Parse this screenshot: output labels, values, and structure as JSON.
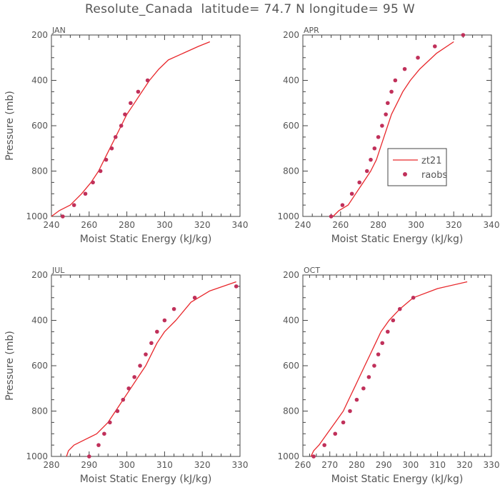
{
  "title": "Resolute_Canada  latitude= 74.7 N longitude= 95 W",
  "colors": {
    "model_line": "#e8272b",
    "raobs_marker": "#c0305a",
    "axis": "#444444",
    "text": "#555555"
  },
  "legend": {
    "line_label": "zt21",
    "marker_label": "raobs"
  },
  "chart_data": [
    {
      "type": "line",
      "panel": "JAN",
      "xlabel": "Moist Static Energy (kJ/kg)",
      "ylabel": "Pressure (mb)",
      "xlim": [
        240,
        340
      ],
      "ylim": [
        1000,
        200
      ],
      "y_inverted": true,
      "xticks": [
        240,
        260,
        280,
        300,
        320,
        340
      ],
      "yticks": [
        200,
        400,
        600,
        800,
        1000
      ],
      "series": [
        {
          "name": "zt21",
          "kind": "line",
          "x": [
            240,
            244,
            250,
            256,
            261,
            265,
            268,
            271,
            274,
            277,
            280,
            284,
            288,
            292,
            297,
            302,
            310,
            318,
            324
          ],
          "y": [
            1000,
            975,
            950,
            900,
            850,
            800,
            750,
            700,
            650,
            600,
            550,
            500,
            450,
            400,
            350,
            310,
            280,
            250,
            230
          ]
        },
        {
          "name": "raobs",
          "kind": "scatter",
          "x": [
            246,
            252,
            258,
            262,
            266,
            269,
            272,
            274,
            277,
            279,
            282,
            286,
            291
          ],
          "y": [
            1000,
            950,
            900,
            850,
            800,
            750,
            700,
            650,
            600,
            550,
            500,
            450,
            400
          ]
        }
      ]
    },
    {
      "type": "line",
      "panel": "APR",
      "xlabel": "Moist Static Energy (kJ/kg)",
      "ylabel": "",
      "xlim": [
        240,
        340
      ],
      "ylim": [
        1000,
        200
      ],
      "y_inverted": true,
      "xticks": [
        240,
        260,
        280,
        300,
        320,
        340
      ],
      "yticks": [
        200,
        400,
        600,
        800,
        1000
      ],
      "series": [
        {
          "name": "zt21",
          "kind": "line",
          "x": [
            256,
            259,
            264,
            268,
            272,
            276,
            279,
            281,
            283,
            285,
            287,
            290,
            293,
            297,
            302,
            311,
            320
          ],
          "y": [
            1000,
            975,
            950,
            900,
            850,
            800,
            750,
            700,
            650,
            600,
            550,
            500,
            450,
            400,
            350,
            280,
            230
          ]
        },
        {
          "name": "raobs",
          "kind": "scatter",
          "x": [
            255,
            261,
            266,
            270,
            274,
            276,
            278,
            280,
            282,
            284,
            285,
            287,
            289,
            294,
            301,
            310,
            325
          ],
          "y": [
            1000,
            950,
            900,
            850,
            800,
            750,
            700,
            650,
            600,
            550,
            500,
            450,
            400,
            350,
            300,
            250,
            200
          ]
        }
      ]
    },
    {
      "type": "line",
      "panel": "JUL",
      "xlabel": "Moist Static Energy (kJ/kg)",
      "ylabel": "Pressure (mb)",
      "xlim": [
        280,
        330
      ],
      "ylim": [
        1000,
        200
      ],
      "y_inverted": true,
      "xticks": [
        280,
        290,
        300,
        310,
        320,
        330
      ],
      "yticks": [
        200,
        400,
        600,
        800,
        1000
      ],
      "series": [
        {
          "name": "zt21",
          "kind": "line",
          "x": [
            284,
            284.5,
            286,
            289,
            292,
            295,
            297,
            299,
            301,
            303,
            305,
            306.5,
            308,
            310,
            313,
            317,
            322,
            329
          ],
          "y": [
            1000,
            975,
            950,
            925,
            900,
            850,
            800,
            750,
            700,
            650,
            600,
            550,
            500,
            450,
            400,
            320,
            270,
            230
          ]
        },
        {
          "name": "raobs",
          "kind": "scatter",
          "x": [
            290,
            292.5,
            294,
            295.5,
            297.5,
            299,
            300.5,
            302,
            303.5,
            305,
            306.5,
            308,
            310,
            312.5,
            318,
            329
          ],
          "y": [
            1000,
            950,
            900,
            850,
            800,
            750,
            700,
            650,
            600,
            550,
            500,
            450,
            400,
            350,
            300,
            250
          ]
        }
      ]
    },
    {
      "type": "line",
      "panel": "OCT",
      "xlabel": "Moist Static Energy (kJ/kg)",
      "ylabel": "",
      "xlim": [
        260,
        330
      ],
      "ylim": [
        1000,
        200
      ],
      "y_inverted": true,
      "xticks": [
        260,
        270,
        280,
        290,
        300,
        310,
        320,
        330
      ],
      "yticks": [
        200,
        400,
        600,
        800,
        1000
      ],
      "series": [
        {
          "name": "zt21",
          "kind": "line",
          "x": [
            263,
            264,
            266,
            269,
            272,
            275,
            277,
            279,
            281,
            283,
            285,
            287,
            289,
            292,
            296,
            301,
            310,
            321
          ],
          "y": [
            1000,
            975,
            950,
            900,
            850,
            800,
            750,
            700,
            650,
            600,
            550,
            500,
            450,
            400,
            350,
            300,
            260,
            230
          ]
        },
        {
          "name": "raobs",
          "kind": "scatter",
          "x": [
            264,
            268,
            272,
            275,
            277.5,
            280,
            282.5,
            284.5,
            286.5,
            288,
            289.5,
            291.5,
            293.5,
            296,
            301
          ],
          "y": [
            1000,
            950,
            900,
            850,
            800,
            750,
            700,
            650,
            600,
            550,
            500,
            450,
            400,
            350,
            300
          ]
        }
      ]
    }
  ]
}
